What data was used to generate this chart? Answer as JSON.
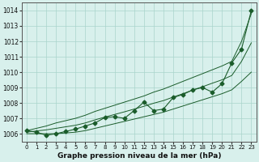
{
  "x": [
    0,
    1,
    2,
    3,
    4,
    5,
    6,
    7,
    8,
    9,
    10,
    11,
    12,
    13,
    14,
    15,
    16,
    17,
    18,
    19,
    20,
    21,
    22,
    23
  ],
  "y_main": [
    1006.2,
    1006.1,
    1005.9,
    1006.0,
    1006.15,
    1006.3,
    1006.5,
    1006.7,
    1007.05,
    1007.1,
    1007.0,
    1007.5,
    1008.05,
    1007.5,
    1007.6,
    1008.35,
    1008.55,
    1008.85,
    1009.0,
    1008.7,
    1009.25,
    1010.6,
    1011.5,
    1014.0
  ],
  "y_upper": [
    1006.2,
    1006.35,
    1006.5,
    1006.7,
    1006.85,
    1007.0,
    1007.2,
    1007.45,
    1007.65,
    1007.85,
    1008.05,
    1008.25,
    1008.45,
    1008.7,
    1008.9,
    1009.15,
    1009.4,
    1009.65,
    1009.9,
    1010.15,
    1010.4,
    1010.7,
    1012.0,
    1013.8
  ],
  "y_lower": [
    1006.0,
    1006.0,
    1006.0,
    1006.0,
    1006.05,
    1006.1,
    1006.2,
    1006.35,
    1006.5,
    1006.65,
    1006.8,
    1006.95,
    1007.1,
    1007.25,
    1007.4,
    1007.6,
    1007.8,
    1008.0,
    1008.2,
    1008.4,
    1008.6,
    1008.85,
    1009.4,
    1010.0
  ],
  "y_mid": [
    1006.1,
    1006.18,
    1006.25,
    1006.35,
    1006.45,
    1006.55,
    1006.7,
    1006.9,
    1007.08,
    1007.25,
    1007.42,
    1007.6,
    1007.78,
    1007.98,
    1008.15,
    1008.38,
    1008.6,
    1008.83,
    1009.05,
    1009.28,
    1009.5,
    1009.78,
    1010.7,
    1011.9
  ],
  "ylim_min": 1005.5,
  "ylim_max": 1014.5,
  "yticks": [
    1006,
    1007,
    1008,
    1009,
    1010,
    1011,
    1012,
    1013,
    1014
  ],
  "xlabel": "Graphe pression niveau de la mer (hPa)",
  "bg_color": "#d8f0ec",
  "line_color": "#1a5c2a",
  "grid_color": "#aad4cc"
}
